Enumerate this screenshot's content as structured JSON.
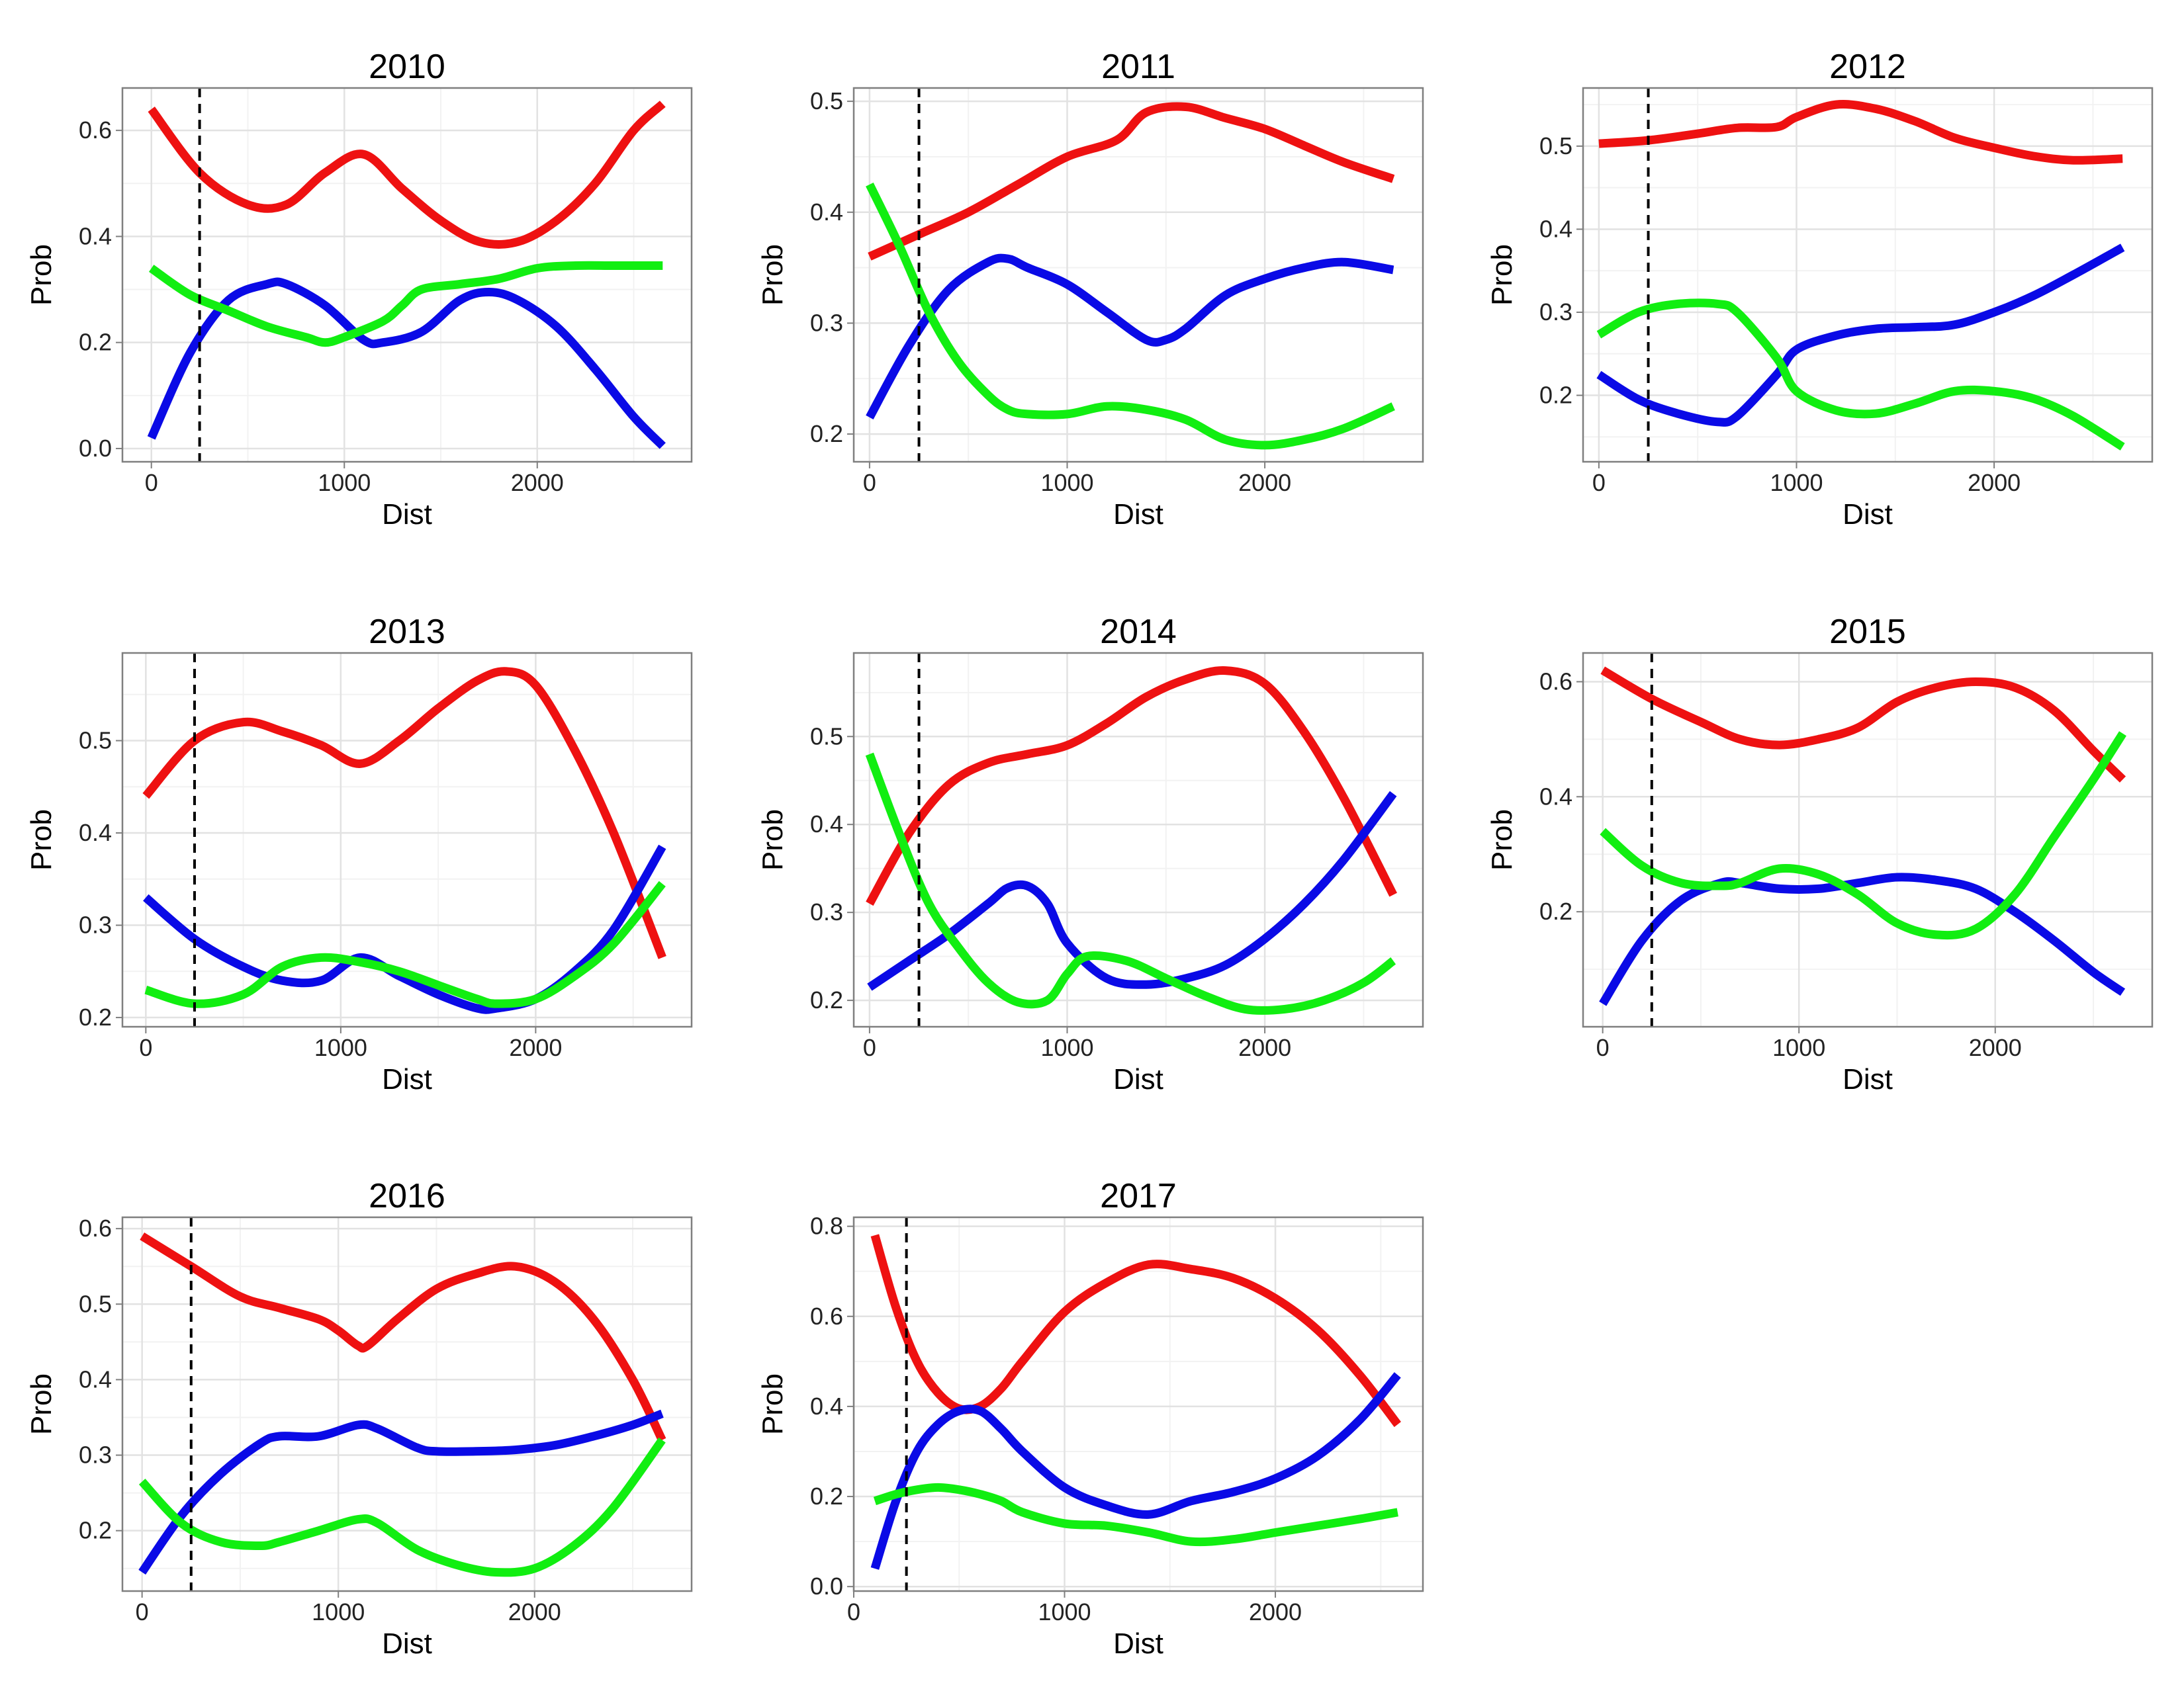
{
  "colors": {
    "red": "#ee1111",
    "blue": "#0a0ae6",
    "green": "#11ee11",
    "grid": "#e2e2e2",
    "frame": "#7f7f7f",
    "vline": "#000000"
  },
  "chart_data": [
    {
      "type": "line",
      "title": "2010",
      "xlabel": "Dist",
      "ylabel": "Prob",
      "xlim": [
        -150,
        2800
      ],
      "ylim": [
        -0.025,
        0.68
      ],
      "xticks": [
        0,
        1000,
        2000
      ],
      "yticks": [
        0.0,
        0.2,
        0.4,
        0.6
      ],
      "ytick_labels": [
        "0.0",
        "0.2",
        "0.4",
        "0.6"
      ],
      "vline_x": 250,
      "grid": true,
      "series": [
        {
          "color": "red",
          "x": [
            0,
            250,
            500,
            700,
            900,
            1100,
            1300,
            1500,
            1700,
            1900,
            2100,
            2300,
            2500,
            2650
          ],
          "y": [
            0.64,
            0.52,
            0.46,
            0.46,
            0.52,
            0.555,
            0.49,
            0.43,
            0.39,
            0.39,
            0.43,
            0.5,
            0.6,
            0.65
          ]
        },
        {
          "color": "blue",
          "x": [
            0,
            200,
            400,
            600,
            700,
            900,
            1100,
            1200,
            1400,
            1600,
            1750,
            1900,
            2100,
            2300,
            2500,
            2650
          ],
          "y": [
            0.02,
            0.18,
            0.28,
            0.31,
            0.31,
            0.27,
            0.205,
            0.2,
            0.22,
            0.28,
            0.295,
            0.28,
            0.23,
            0.15,
            0.06,
            0.005
          ]
        },
        {
          "color": "green",
          "x": [
            0,
            200,
            400,
            600,
            800,
            900,
            1000,
            1200,
            1300,
            1400,
            1600,
            1800,
            2000,
            2200,
            2400,
            2650
          ],
          "y": [
            0.34,
            0.29,
            0.26,
            0.23,
            0.21,
            0.2,
            0.21,
            0.24,
            0.27,
            0.3,
            0.31,
            0.32,
            0.34,
            0.345,
            0.345,
            0.345
          ]
        }
      ]
    },
    {
      "type": "line",
      "title": "2011",
      "xlabel": "Dist",
      "ylabel": "Prob",
      "xlim": [
        -80,
        2800
      ],
      "ylim": [
        0.175,
        0.512
      ],
      "xticks": [
        0,
        1000,
        2000
      ],
      "yticks": [
        0.2,
        0.3,
        0.4,
        0.5
      ],
      "ytick_labels": [
        "0.2",
        "0.3",
        "0.4",
        "0.5"
      ],
      "vline_x": 250,
      "grid": true,
      "series": [
        {
          "color": "red",
          "x": [
            0,
            250,
            500,
            750,
            1000,
            1250,
            1400,
            1600,
            1800,
            2000,
            2200,
            2400,
            2650
          ],
          "y": [
            0.36,
            0.38,
            0.4,
            0.425,
            0.45,
            0.465,
            0.49,
            0.495,
            0.485,
            0.475,
            0.46,
            0.445,
            0.43
          ]
        },
        {
          "color": "blue",
          "x": [
            0,
            200,
            400,
            600,
            700,
            800,
            1000,
            1200,
            1400,
            1500,
            1600,
            1800,
            2000,
            2200,
            2400,
            2650
          ],
          "y": [
            0.215,
            0.28,
            0.33,
            0.355,
            0.358,
            0.35,
            0.335,
            0.31,
            0.285,
            0.285,
            0.295,
            0.325,
            0.34,
            0.35,
            0.355,
            0.348
          ]
        },
        {
          "color": "green",
          "x": [
            0,
            150,
            300,
            450,
            600,
            700,
            800,
            1000,
            1200,
            1400,
            1600,
            1800,
            2000,
            2200,
            2400,
            2650
          ],
          "y": [
            0.425,
            0.37,
            0.31,
            0.265,
            0.235,
            0.222,
            0.218,
            0.218,
            0.225,
            0.222,
            0.213,
            0.195,
            0.19,
            0.195,
            0.205,
            0.225
          ]
        }
      ]
    },
    {
      "type": "line",
      "title": "2012",
      "xlabel": "Dist",
      "ylabel": "Prob",
      "xlim": [
        -80,
        2800
      ],
      "ylim": [
        0.12,
        0.57
      ],
      "xticks": [
        0,
        1000,
        2000
      ],
      "yticks": [
        0.2,
        0.3,
        0.4,
        0.5
      ],
      "ytick_labels": [
        "0.2",
        "0.3",
        "0.4",
        "0.5"
      ],
      "vline_x": 250,
      "grid": true,
      "series": [
        {
          "color": "red",
          "x": [
            0,
            250,
            500,
            700,
            900,
            1000,
            1200,
            1400,
            1600,
            1800,
            2000,
            2200,
            2400,
            2650
          ],
          "y": [
            0.503,
            0.507,
            0.515,
            0.522,
            0.523,
            0.535,
            0.55,
            0.545,
            0.53,
            0.51,
            0.498,
            0.488,
            0.483,
            0.485
          ]
        },
        {
          "color": "blue",
          "x": [
            0,
            200,
            400,
            600,
            700,
            900,
            1000,
            1200,
            1400,
            1600,
            1800,
            2000,
            2200,
            2400,
            2650
          ],
          "y": [
            0.225,
            0.195,
            0.178,
            0.168,
            0.175,
            0.225,
            0.255,
            0.272,
            0.28,
            0.282,
            0.285,
            0.3,
            0.32,
            0.345,
            0.378
          ]
        },
        {
          "color": "green",
          "x": [
            0,
            200,
            400,
            600,
            700,
            900,
            1000,
            1200,
            1400,
            1600,
            1800,
            2000,
            2200,
            2400,
            2650
          ],
          "y": [
            0.273,
            0.3,
            0.31,
            0.31,
            0.3,
            0.245,
            0.205,
            0.182,
            0.178,
            0.19,
            0.205,
            0.205,
            0.196,
            0.175,
            0.138
          ]
        }
      ]
    },
    {
      "type": "line",
      "title": "2013",
      "xlabel": "Dist",
      "ylabel": "Prob",
      "xlim": [
        -120,
        2800
      ],
      "ylim": [
        0.19,
        0.595
      ],
      "xticks": [
        0,
        1000,
        2000
      ],
      "yticks": [
        0.2,
        0.3,
        0.4,
        0.5
      ],
      "ytick_labels": [
        "0.2",
        "0.3",
        "0.4",
        "0.5"
      ],
      "vline_x": 250,
      "grid": true,
      "series": [
        {
          "color": "red",
          "x": [
            0,
            250,
            500,
            700,
            900,
            1100,
            1300,
            1500,
            1700,
            1850,
            2000,
            2200,
            2400,
            2650
          ],
          "y": [
            0.44,
            0.5,
            0.52,
            0.51,
            0.495,
            0.475,
            0.5,
            0.535,
            0.565,
            0.575,
            0.56,
            0.49,
            0.4,
            0.265
          ]
        },
        {
          "color": "blue",
          "x": [
            0,
            250,
            500,
            700,
            900,
            1100,
            1300,
            1500,
            1700,
            1800,
            2000,
            2200,
            2400,
            2650
          ],
          "y": [
            0.33,
            0.285,
            0.255,
            0.24,
            0.24,
            0.265,
            0.245,
            0.225,
            0.21,
            0.21,
            0.22,
            0.25,
            0.295,
            0.385
          ]
        },
        {
          "color": "green",
          "x": [
            0,
            250,
            500,
            700,
            900,
            1100,
            1300,
            1500,
            1700,
            1800,
            2000,
            2200,
            2400,
            2650
          ],
          "y": [
            0.23,
            0.215,
            0.225,
            0.255,
            0.265,
            0.26,
            0.25,
            0.235,
            0.22,
            0.215,
            0.22,
            0.245,
            0.28,
            0.345
          ]
        }
      ]
    },
    {
      "type": "line",
      "title": "2014",
      "xlabel": "Dist",
      "ylabel": "Prob",
      "xlim": [
        -80,
        2800
      ],
      "ylim": [
        0.17,
        0.595
      ],
      "xticks": [
        0,
        1000,
        2000
      ],
      "yticks": [
        0.2,
        0.3,
        0.4,
        0.5
      ],
      "ytick_labels": [
        "0.2",
        "0.3",
        "0.4",
        "0.5"
      ],
      "vline_x": 250,
      "grid": true,
      "series": [
        {
          "color": "red",
          "x": [
            0,
            200,
            400,
            600,
            800,
            1000,
            1200,
            1400,
            1600,
            1800,
            2000,
            2200,
            2400,
            2650
          ],
          "y": [
            0.31,
            0.39,
            0.445,
            0.47,
            0.48,
            0.49,
            0.515,
            0.545,
            0.565,
            0.575,
            0.56,
            0.505,
            0.43,
            0.32
          ]
        },
        {
          "color": "blue",
          "x": [
            0,
            200,
            400,
            600,
            700,
            800,
            900,
            1000,
            1200,
            1400,
            1600,
            1800,
            2000,
            2200,
            2400,
            2650
          ],
          "y": [
            0.215,
            0.245,
            0.275,
            0.31,
            0.328,
            0.33,
            0.31,
            0.265,
            0.225,
            0.218,
            0.225,
            0.24,
            0.27,
            0.31,
            0.36,
            0.435
          ]
        },
        {
          "color": "green",
          "x": [
            0,
            150,
            300,
            450,
            600,
            750,
            900,
            1000,
            1100,
            1300,
            1500,
            1700,
            1900,
            2100,
            2300,
            2500,
            2650
          ],
          "y": [
            0.48,
            0.39,
            0.31,
            0.26,
            0.22,
            0.198,
            0.2,
            0.23,
            0.25,
            0.245,
            0.225,
            0.205,
            0.19,
            0.19,
            0.2,
            0.22,
            0.245
          ]
        }
      ]
    },
    {
      "type": "line",
      "title": "2015",
      "xlabel": "Dist",
      "ylabel": "Prob",
      "xlim": [
        -100,
        2800
      ],
      "ylim": [
        0.0,
        0.65
      ],
      "xticks": [
        0,
        1000,
        2000
      ],
      "yticks": [
        0.2,
        0.4,
        0.6
      ],
      "ytick_labels": [
        "0.2",
        "0.4",
        "0.6"
      ],
      "vline_x": 250,
      "grid": true,
      "series": [
        {
          "color": "red",
          "x": [
            0,
            250,
            500,
            700,
            900,
            1100,
            1300,
            1500,
            1700,
            1900,
            2100,
            2300,
            2500,
            2650
          ],
          "y": [
            0.62,
            0.57,
            0.53,
            0.5,
            0.49,
            0.5,
            0.52,
            0.565,
            0.59,
            0.6,
            0.59,
            0.55,
            0.48,
            0.43
          ]
        },
        {
          "color": "blue",
          "x": [
            0,
            200,
            400,
            600,
            700,
            900,
            1100,
            1300,
            1500,
            1700,
            1900,
            2100,
            2300,
            2500,
            2650
          ],
          "y": [
            0.04,
            0.15,
            0.22,
            0.25,
            0.25,
            0.24,
            0.24,
            0.25,
            0.26,
            0.255,
            0.24,
            0.2,
            0.15,
            0.095,
            0.06
          ]
        },
        {
          "color": "green",
          "x": [
            0,
            200,
            400,
            600,
            700,
            900,
            1100,
            1300,
            1500,
            1700,
            1900,
            2100,
            2300,
            2500,
            2650
          ],
          "y": [
            0.34,
            0.28,
            0.25,
            0.245,
            0.25,
            0.275,
            0.265,
            0.23,
            0.18,
            0.16,
            0.17,
            0.23,
            0.33,
            0.43,
            0.51
          ]
        }
      ]
    },
    {
      "type": "line",
      "title": "2016",
      "xlabel": "Dist",
      "ylabel": "Prob",
      "xlim": [
        -100,
        2800
      ],
      "ylim": [
        0.12,
        0.615
      ],
      "xticks": [
        0,
        1000,
        2000
      ],
      "yticks": [
        0.2,
        0.3,
        0.4,
        0.5,
        0.6
      ],
      "ytick_labels": [
        "0.2",
        "0.3",
        "0.4",
        "0.5",
        "0.6"
      ],
      "vline_x": 250,
      "grid": true,
      "series": [
        {
          "color": "red",
          "x": [
            0,
            250,
            500,
            700,
            900,
            1000,
            1100,
            1150,
            1300,
            1500,
            1700,
            1900,
            2100,
            2300,
            2500,
            2650
          ],
          "y": [
            0.59,
            0.55,
            0.51,
            0.495,
            0.48,
            0.465,
            0.445,
            0.445,
            0.48,
            0.52,
            0.54,
            0.55,
            0.53,
            0.48,
            0.4,
            0.32
          ]
        },
        {
          "color": "blue",
          "x": [
            0,
            200,
            400,
            600,
            700,
            900,
            1100,
            1200,
            1400,
            1500,
            1700,
            1900,
            2100,
            2300,
            2500,
            2650
          ],
          "y": [
            0.145,
            0.22,
            0.275,
            0.315,
            0.325,
            0.325,
            0.34,
            0.335,
            0.31,
            0.305,
            0.305,
            0.307,
            0.313,
            0.325,
            0.34,
            0.355
          ]
        },
        {
          "color": "green",
          "x": [
            0,
            200,
            400,
            600,
            700,
            900,
            1100,
            1200,
            1400,
            1600,
            1800,
            2000,
            2200,
            2400,
            2650
          ],
          "y": [
            0.265,
            0.21,
            0.185,
            0.18,
            0.185,
            0.2,
            0.215,
            0.21,
            0.175,
            0.155,
            0.145,
            0.15,
            0.18,
            0.23,
            0.32
          ]
        }
      ]
    },
    {
      "type": "line",
      "title": "2017",
      "xlabel": "Dist",
      "ylabel": "Prob",
      "xlim": [
        0,
        2700
      ],
      "ylim": [
        -0.01,
        0.82
      ],
      "xticks": [
        0,
        1000,
        2000
      ],
      "yticks": [
        0.0,
        0.2,
        0.4,
        0.6,
        0.8
      ],
      "ytick_labels": [
        "0.0",
        "0.2",
        "0.4",
        "0.6",
        "0.8"
      ],
      "vline_x": 250,
      "grid": true,
      "series": [
        {
          "color": "red",
          "x": [
            100,
            200,
            300,
            400,
            500,
            600,
            700,
            800,
            1000,
            1200,
            1400,
            1600,
            1800,
            2000,
            2200,
            2400,
            2580
          ],
          "y": [
            0.78,
            0.62,
            0.5,
            0.43,
            0.395,
            0.4,
            0.44,
            0.5,
            0.61,
            0.675,
            0.715,
            0.705,
            0.685,
            0.64,
            0.57,
            0.47,
            0.36
          ]
        },
        {
          "color": "blue",
          "x": [
            100,
            200,
            300,
            400,
            500,
            600,
            700,
            800,
            1000,
            1200,
            1400,
            1600,
            1800,
            2000,
            2200,
            2400,
            2580
          ],
          "y": [
            0.04,
            0.19,
            0.3,
            0.36,
            0.39,
            0.39,
            0.35,
            0.3,
            0.22,
            0.18,
            0.16,
            0.19,
            0.21,
            0.24,
            0.29,
            0.37,
            0.47
          ]
        },
        {
          "color": "green",
          "x": [
            100,
            200,
            300,
            400,
            500,
            600,
            700,
            800,
            1000,
            1200,
            1400,
            1600,
            1800,
            2000,
            2200,
            2400,
            2580
          ],
          "y": [
            0.19,
            0.205,
            0.215,
            0.22,
            0.215,
            0.205,
            0.19,
            0.165,
            0.14,
            0.135,
            0.12,
            0.1,
            0.105,
            0.12,
            0.135,
            0.15,
            0.165
          ]
        }
      ]
    }
  ]
}
